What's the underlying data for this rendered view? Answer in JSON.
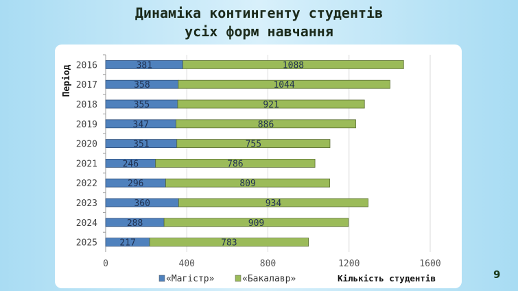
{
  "slide": {
    "title_line1": "Динаміка контингенту студентів",
    "title_line2": "усіх форм навчання",
    "page_number": "9"
  },
  "chart_data": {
    "type": "bar",
    "orientation": "horizontal",
    "stacked": true,
    "categories": [
      "2016",
      "2017",
      "2018",
      "2019",
      "2020",
      "2021",
      "2022",
      "2023",
      "2024",
      "2025"
    ],
    "series": [
      {
        "name": "«Магістр»",
        "color": "#4f81bd",
        "values": [
          381,
          358,
          355,
          347,
          351,
          246,
          296,
          360,
          288,
          217
        ]
      },
      {
        "name": "«Бакалавр»",
        "color": "#9bbb59",
        "values": [
          1088,
          1044,
          921,
          886,
          755,
          786,
          809,
          934,
          909,
          783
        ]
      }
    ],
    "xlabel": "Кількість студентів",
    "ylabel": "Період",
    "xlim": [
      0,
      1600
    ],
    "xticks": [
      "0",
      "400",
      "800",
      "1200",
      "1600"
    ],
    "grid": "vertical",
    "legend": "bottom"
  }
}
